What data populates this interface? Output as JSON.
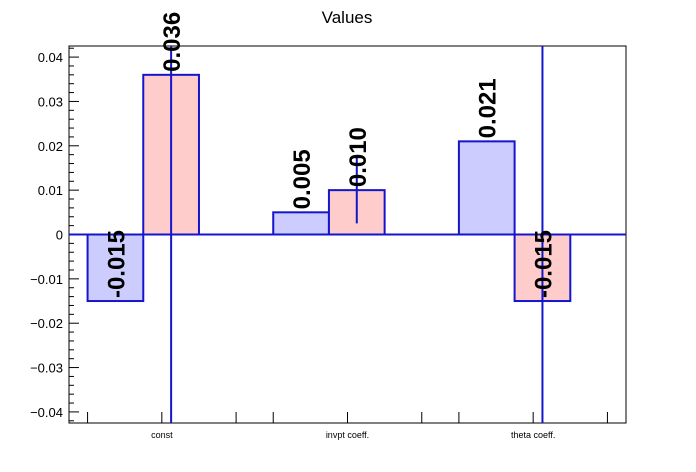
{
  "chart_data": {
    "type": "bar",
    "title": "Values",
    "categories": [
      "const",
      "invpt coeff.",
      "theta coeff."
    ],
    "series": [
      {
        "values": [
          -0.015,
          0.005,
          0.021
        ],
        "labels": [
          "-0.015",
          "0.005",
          "0.021"
        ]
      },
      {
        "values": [
          0.036,
          0.01,
          -0.015
        ],
        "labels": [
          "0.036",
          "0.010",
          "-0.015"
        ]
      }
    ],
    "errors": [
      {
        "category": "const",
        "series": 1,
        "low": -0.043,
        "high": 0.043
      },
      {
        "category": "invpt coeff.",
        "series": 1,
        "low": 0.0025,
        "high": 0.0175
      },
      {
        "category": "theta coeff.",
        "series": 1,
        "low": -0.043,
        "high": 0.043
      }
    ],
    "ylim": [
      -0.0425,
      0.0425
    ],
    "yticks": [
      -0.04,
      -0.03,
      -0.02,
      -0.01,
      0,
      0.01,
      0.02,
      0.03,
      0.04
    ],
    "ytick_labels": [
      "−0.04",
      "−0.03",
      "−0.02",
      "−0.01",
      "0",
      "0.01",
      "0.02",
      "0.03",
      "0.04"
    ],
    "xlabel": "",
    "ylabel": "",
    "grid": false,
    "colors": {
      "series_fills": [
        "#ccccff",
        "#ffcccc"
      ],
      "bar_stroke": "#1515cc",
      "error_bar": "#1515cc",
      "zero_line": "#1515cc",
      "axis": "#000000"
    }
  }
}
